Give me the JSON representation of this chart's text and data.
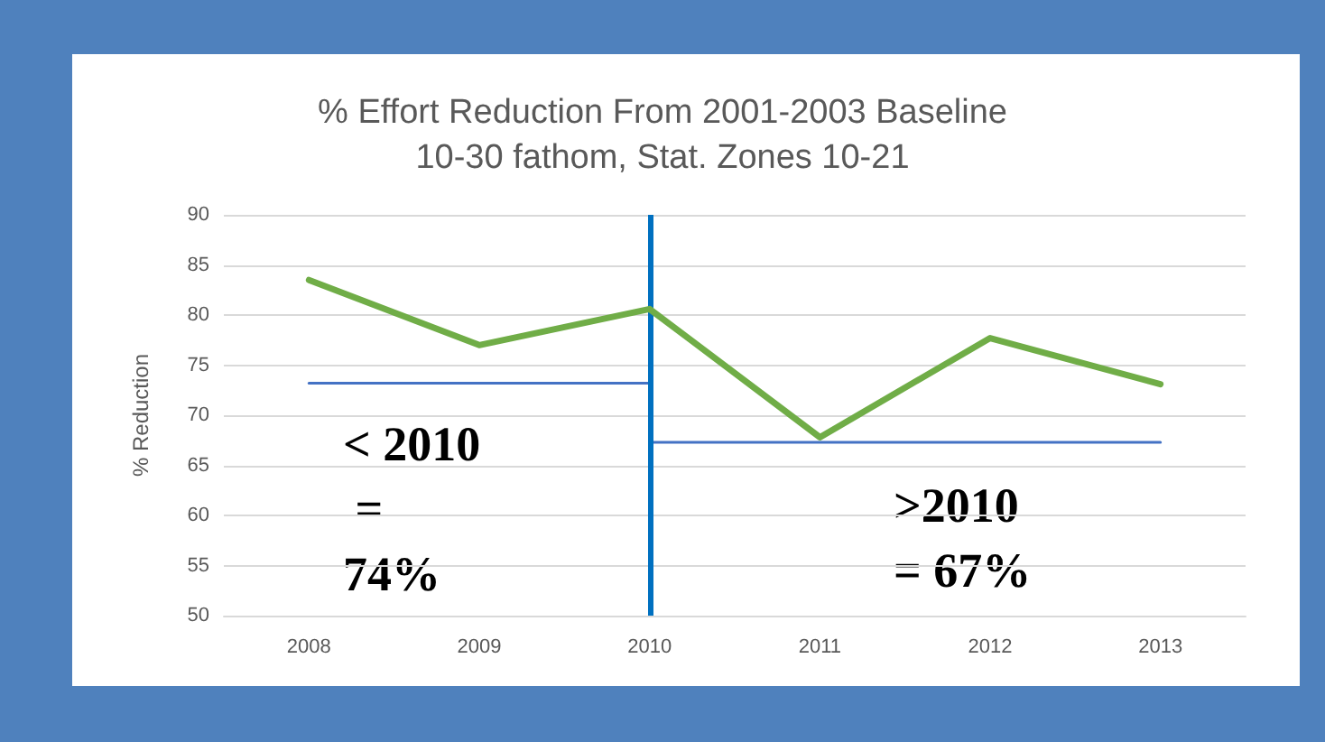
{
  "chart_data": {
    "type": "line",
    "title": "% Effort Reduction From 2001-2003 Baseline",
    "subtitle": "10-30 fathom, Stat. Zones 10-21",
    "ylabel": "% Reduction",
    "categories": [
      "2008",
      "2009",
      "2010",
      "2011",
      "2012",
      "2013"
    ],
    "series": [
      {
        "color": "#70ad47",
        "values": [
          83.5,
          77.0,
          80.6,
          67.8,
          77.7,
          73.1
        ]
      },
      {
        "color": "#4472c4",
        "values": [
          73.2,
          73.2,
          73.2,
          null,
          null,
          null
        ]
      },
      {
        "color": "#4472c4",
        "values": [
          null,
          null,
          67.3,
          67.3,
          67.3,
          67.3
        ]
      }
    ],
    "ref_lines": [
      {
        "axis": "x",
        "value": "2010",
        "color": "#0070c0"
      }
    ],
    "annotations": [
      "< 2010 = 74%",
      ">2010 = 67%"
    ],
    "ylim": [
      50,
      90
    ],
    "yticks": [
      50,
      55,
      60,
      65,
      70,
      75,
      80,
      85,
      90
    ],
    "grid": "y",
    "marker": "none",
    "line_style": "solid"
  }
}
